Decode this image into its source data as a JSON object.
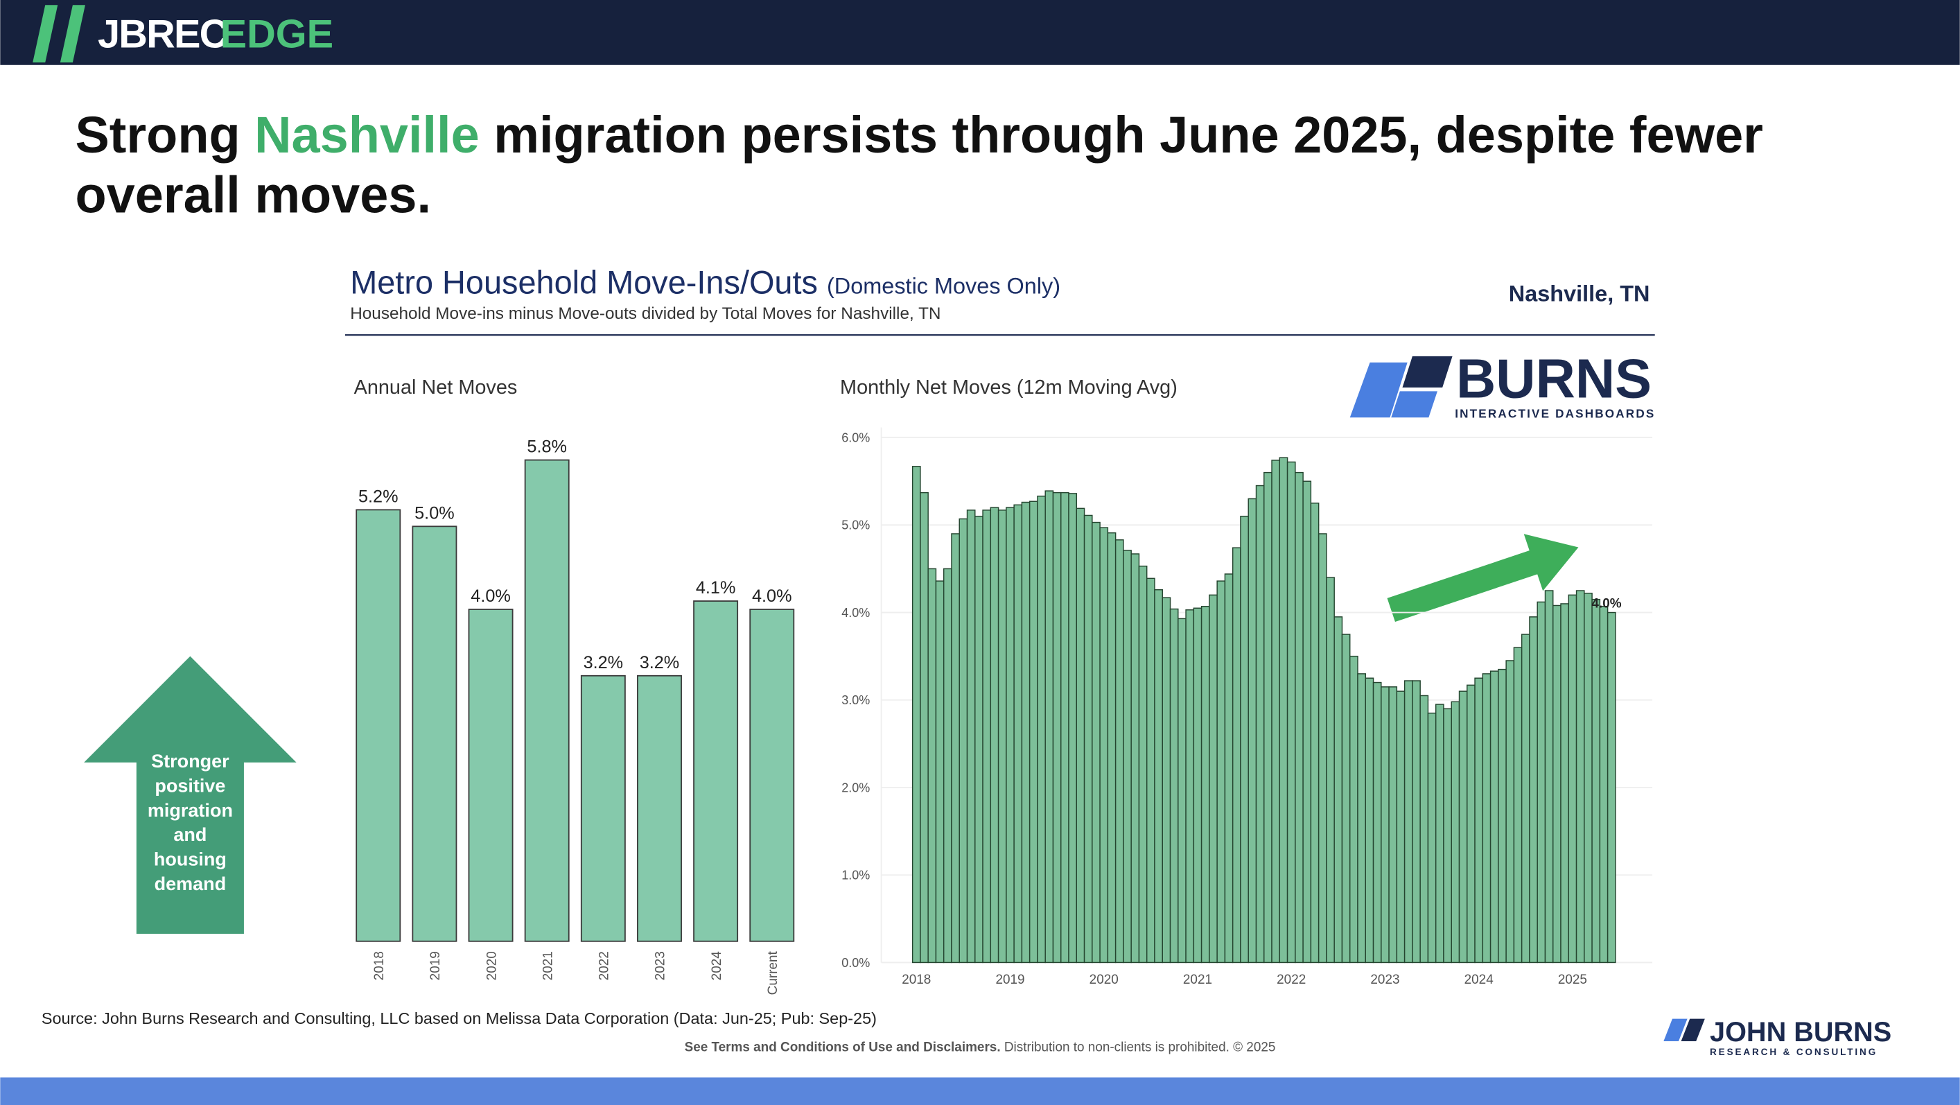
{
  "header": {
    "brand": "JBREC",
    "brand_accent": "EDGE"
  },
  "headline": [
    "Strong",
    "Nashville",
    "migration persists through June 2025, despite fewer",
    "overall moves."
  ],
  "panel": {
    "title": "Metro Household Move-Ins/Outs",
    "title_note": "(Domestic Moves Only)",
    "subtitle": "Household Move-ins minus Move-outs divided by Total Moves for Nashville, TN",
    "location": "Nashville, TN"
  },
  "burns_logo": {
    "name": "BURNS",
    "tagline": "INTERACTIVE DASHBOARDS"
  },
  "callout": [
    "Stronger",
    "positive",
    "migration",
    "and",
    "housing",
    "demand"
  ],
  "chart_data": [
    {
      "type": "bar",
      "title": "Annual Net Moves",
      "categories": [
        "2018",
        "2019",
        "2020",
        "2021",
        "2022",
        "2023",
        "2024",
        "Current"
      ],
      "values": [
        5.2,
        5.0,
        4.0,
        5.8,
        3.2,
        3.2,
        4.1,
        4.0
      ],
      "value_labels": [
        "5.2%",
        "5.0%",
        "4.0%",
        "5.8%",
        "3.2%",
        "3.2%",
        "4.1%",
        "4.0%"
      ],
      "color": "#85c9ab"
    },
    {
      "type": "bar",
      "title": "Monthly Net Moves (12m Moving Avg)",
      "categories": [
        "2018",
        null,
        null,
        null,
        null,
        null,
        null,
        null,
        null,
        null,
        null,
        null,
        "2019",
        null,
        null,
        null,
        null,
        null,
        null,
        null,
        null,
        null,
        null,
        null,
        "2020",
        null,
        null,
        null,
        null,
        null,
        null,
        null,
        null,
        null,
        null,
        null,
        "2021",
        null,
        null,
        null,
        null,
        null,
        null,
        null,
        null,
        null,
        null,
        null,
        "2022",
        null,
        null,
        null,
        null,
        null,
        null,
        null,
        null,
        null,
        null,
        null,
        "2023",
        null,
        null,
        null,
        null,
        null,
        null,
        null,
        null,
        null,
        null,
        null,
        "2024",
        null,
        null,
        null,
        null,
        null,
        null,
        null,
        null,
        null,
        null,
        null,
        "2025",
        null,
        null,
        null,
        null,
        null
      ],
      "values": [
        5.67,
        5.37,
        4.5,
        4.36,
        4.5,
        4.9,
        5.07,
        5.17,
        5.1,
        5.17,
        5.2,
        5.17,
        5.2,
        5.23,
        5.26,
        5.27,
        5.33,
        5.39,
        5.37,
        5.37,
        5.36,
        5.19,
        5.11,
        5.03,
        4.97,
        4.91,
        4.83,
        4.71,
        4.67,
        4.53,
        4.39,
        4.26,
        4.17,
        4.04,
        3.93,
        4.03,
        4.05,
        4.07,
        4.2,
        4.36,
        4.44,
        4.74,
        5.1,
        5.3,
        5.45,
        5.6,
        5.74,
        5.77,
        5.72,
        5.6,
        5.5,
        5.25,
        4.9,
        4.4,
        3.95,
        3.75,
        3.5,
        3.3,
        3.25,
        3.2,
        3.15,
        3.15,
        3.1,
        3.22,
        3.22,
        3.05,
        2.85,
        2.95,
        2.9,
        2.98,
        3.1,
        3.17,
        3.25,
        3.3,
        3.33,
        3.35,
        3.45,
        3.6,
        3.75,
        3.95,
        4.12,
        4.25,
        4.08,
        4.1,
        4.2,
        4.25,
        4.22,
        4.15,
        4.07,
        4.0
      ],
      "value_labels": [
        null,
        null,
        null,
        null,
        null,
        null,
        null,
        null,
        null,
        null,
        null,
        null,
        null,
        null,
        null,
        null,
        null,
        null,
        null,
        null,
        null,
        null,
        null,
        null,
        null,
        null,
        null,
        null,
        null,
        null,
        null,
        null,
        null,
        null,
        null,
        null,
        null,
        null,
        null,
        null,
        null,
        null,
        null,
        null,
        null,
        null,
        null,
        null,
        null,
        null,
        null,
        null,
        null,
        null,
        null,
        null,
        null,
        null,
        null,
        null,
        null,
        null,
        null,
        null,
        null,
        null,
        null,
        null,
        null,
        null,
        null,
        null,
        null,
        null,
        null,
        null,
        null,
        null,
        null,
        null,
        null,
        null,
        null,
        null,
        null,
        null,
        null,
        null,
        null,
        "4.0%"
      ],
      "color": "#7dbf99",
      "ylim": [
        0,
        6
      ],
      "yticks": [
        {
          "value": 0,
          "label": "0.0%"
        },
        {
          "value": 1,
          "label": "1.0%"
        },
        {
          "value": 2,
          "label": "2.0%"
        },
        {
          "value": 3,
          "label": "3.0%"
        },
        {
          "value": 4,
          "label": "4.0%"
        },
        {
          "value": 5,
          "label": "5.0%"
        },
        {
          "value": 6,
          "label": "6.0%"
        }
      ],
      "grid": true
    }
  ],
  "footer": {
    "source": "Source: John Burns Research and Consulting, LLC based on Melissa Data Corporation (Data: Jun-25; Pub: Sep-25)",
    "terms": "See Terms and Conditions of Use and Disclaimers.",
    "notice": "Distribution to non-clients is prohibited. © 2025",
    "logo": "JOHN BURNS",
    "logo_tagline": "RESEARCH & CONSULTING"
  }
}
